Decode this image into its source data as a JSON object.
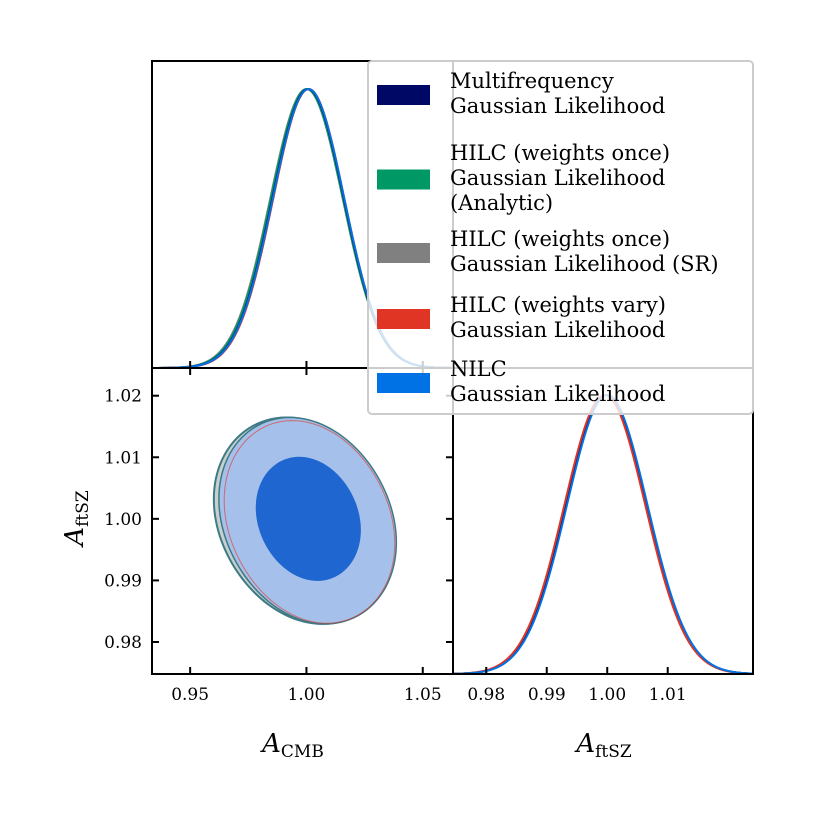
{
  "chart_data": {
    "type": "corner",
    "title": "",
    "parameters": [
      {
        "name": "A_CMB",
        "label_main": "A",
        "label_sub": "CMB"
      },
      {
        "name": "A_ftSZ",
        "label_main": "A",
        "label_sub": "ftSZ"
      }
    ],
    "panels": [
      {
        "id": "1d-A_CMB",
        "type": "line",
        "parameter": "A_CMB",
        "xlim": [
          0.9336,
          1.063
        ],
        "xticks": [
          0.95,
          1.0,
          1.05
        ],
        "xtick_labels": [
          "0.95",
          "1.00",
          "1.05"
        ],
        "show_xtick_labels": false,
        "yticks": [],
        "series": [
          {
            "name": "Multifrequency Gaussian Likelihood",
            "mean": 1.0007,
            "sigma": 0.0154
          },
          {
            "name": "HILC (weights once) Gaussian Likelihood (Analytic)",
            "mean": 1.0002,
            "sigma": 0.0155
          },
          {
            "name": "HILC (weights once) Gaussian Likelihood (SR)",
            "mean": 1.0,
            "sigma": 0.0156
          },
          {
            "name": "HILC (weights vary) Gaussian Likelihood",
            "mean": 1.001,
            "sigma": 0.0153
          },
          {
            "name": "NILC Gaussian Likelihood",
            "mean": 1.0009,
            "sigma": 0.0154
          }
        ]
      },
      {
        "id": "2d-A_CMB-A_ftSZ",
        "type": "contour",
        "x_parameter": "A_CMB",
        "y_parameter": "A_ftSZ",
        "xlim": [
          0.9336,
          1.063
        ],
        "ylim": [
          0.9748,
          1.0245
        ],
        "xticks": [
          0.95,
          1.0,
          1.05
        ],
        "xtick_labels": [
          "0.95",
          "1.00",
          "1.05"
        ],
        "yticks": [
          0.98,
          0.99,
          1.0,
          1.01,
          1.02
        ],
        "ytick_labels": [
          "0.98",
          "0.99",
          "1.00",
          "1.01",
          "1.02"
        ],
        "xlabel": "A_CMB",
        "ylabel": "A_ftSZ",
        "contours": {
          "outer_68_95": {
            "x_range": [
              0.9612,
              1.0405
            ],
            "y_range": [
              0.9834,
              1.016
            ],
            "center": [
              1.0005,
              0.9997
            ]
          },
          "inner_68": {
            "x_range": [
              0.9784,
              1.0237
            ],
            "y_range": [
              0.9903,
              1.01
            ],
            "center": [
              1.0008,
              1.0
            ]
          },
          "correlation": -0.15
        }
      },
      {
        "id": "1d-A_ftSZ",
        "type": "line",
        "parameter": "A_ftSZ",
        "xlim": [
          0.9745,
          1.0241
        ],
        "xticks": [
          0.98,
          0.99,
          1.0,
          1.01
        ],
        "xtick_labels": [
          "0.98",
          "0.99",
          "1.00",
          "1.01"
        ],
        "xlabel": "A_ftSZ",
        "series": [
          {
            "name": "Multifrequency Gaussian Likelihood",
            "mean": 0.9999,
            "sigma": 0.00665
          },
          {
            "name": "HILC (weights once) Gaussian Likelihood (Analytic)",
            "mean": 0.9999,
            "sigma": 0.00665
          },
          {
            "name": "HILC (weights once) Gaussian Likelihood (SR)",
            "mean": 0.9999,
            "sigma": 0.00667
          },
          {
            "name": "HILC (weights vary) Gaussian Likelihood",
            "mean": 0.9996,
            "sigma": 0.00668
          },
          {
            "name": "NILC Gaussian Likelihood",
            "mean": 1.0,
            "sigma": 0.00665
          }
        ]
      }
    ],
    "legend": {
      "placement": "top-right",
      "entries": [
        {
          "lines": [
            "Multifrequency",
            "Gaussian Likelihood"
          ],
          "color": "#000866"
        },
        {
          "lines": [
            "HILC (weights once)",
            "Gaussian Likelihood",
            "(Analytic)"
          ],
          "color": "#009966"
        },
        {
          "lines": [
            "HILC (weights once)",
            "Gaussian Likelihood (SR)"
          ],
          "color": "#808080"
        },
        {
          "lines": [
            "HILC (weights vary)",
            "Gaussian Likelihood"
          ],
          "color": "#E03424"
        },
        {
          "lines": [
            "NILC",
            "Gaussian Likelihood"
          ],
          "color": "#0072E5"
        }
      ]
    },
    "colors": {
      "Multifrequency Gaussian Likelihood": "#000866",
      "HILC (weights once) Gaussian Likelihood (Analytic)": "#009966",
      "HILC (weights once) Gaussian Likelihood (SR)": "#808080",
      "HILC (weights vary) Gaussian Likelihood": "#E03424",
      "NILC Gaussian Likelihood": "#0072E5",
      "contour_outer_fill": "#A5C0EA",
      "contour_inner_fill": "#1F66D0",
      "contour_gray_fill": "#C8D0CF",
      "contour_edge": "#3D7A85"
    }
  }
}
